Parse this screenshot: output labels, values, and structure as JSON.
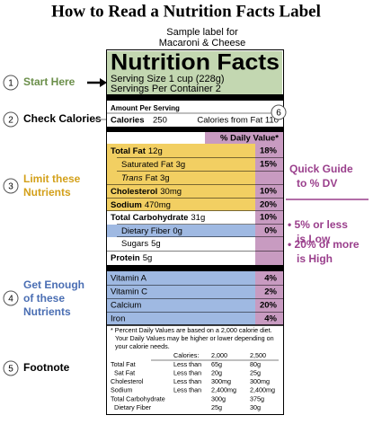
{
  "title": "How to Read a Nutrition Facts Label",
  "subtitle": [
    "Sample label for",
    "Macaroni & Cheese"
  ],
  "annotations": [
    {
      "number": "1",
      "text": [
        "Start Here"
      ]
    },
    {
      "number": "2",
      "text": [
        "Check Calories"
      ]
    },
    {
      "number": "3",
      "text": [
        "Limit these",
        "Nutrients"
      ]
    },
    {
      "number": "4",
      "text": [
        "Get Enough",
        "of these",
        "Nutrients"
      ]
    },
    {
      "number": "5",
      "text": [
        "Footnote"
      ]
    }
  ],
  "guide": {
    "number": "6",
    "heading": [
      "Quick Guide",
      "to % DV"
    ],
    "bullets": [
      [
        "• 5% or less",
        "is Low"
      ],
      [
        "• 20% or more",
        "is High"
      ]
    ]
  },
  "label": {
    "heading": "Nutrition Facts",
    "serving_size": "Serving Size 1 cup (228g)",
    "servings": "Servings Per Container  2",
    "amount_per_serving": "Amount Per Serving",
    "calories_label": "Calories",
    "calories": "250",
    "calories_from_fat": "Calories from Fat 110",
    "dv_header": "% Daily Value*",
    "nutrients": [
      {
        "name": "Total Fat",
        "amount": "12g",
        "dv": "18%"
      },
      {
        "name": "Saturated Fat",
        "amount": "3g",
        "dv": "15%"
      },
      {
        "name": "Trans",
        "amount": "Fat 3g"
      },
      {
        "name": "Cholesterol",
        "amount": "30mg",
        "dv": "10%"
      },
      {
        "name": "Sodium",
        "amount": "470mg",
        "dv": "20%"
      },
      {
        "name": "Total Carbohydrate",
        "amount": "31g",
        "dv": "10%"
      },
      {
        "name": "Dietary Fiber",
        "amount": "0g",
        "dv": "0%"
      },
      {
        "name": "Sugars",
        "amount": "5g"
      },
      {
        "name": "Protein",
        "amount": "5g"
      }
    ],
    "vitamins": [
      {
        "name": "Vitamin A",
        "dv": "4%"
      },
      {
        "name": "Vitamin C",
        "dv": "2%"
      },
      {
        "name": "Calcium",
        "dv": "20%"
      },
      {
        "name": "Iron",
        "dv": "4%"
      }
    ],
    "footnote": [
      "* Percent Daily Values are based on a 2,000 calorie diet.",
      "Your Daily Values may be higher or lower depending on",
      "your calorie needs."
    ],
    "table": {
      "header": [
        "Calories:",
        "2,000",
        "2,500"
      ],
      "rows": [
        [
          "Total Fat",
          "Less than",
          "65g",
          "80g"
        ],
        [
          "Sat Fat",
          "Less than",
          "20g",
          "25g"
        ],
        [
          "Cholesterol",
          "Less than",
          "300mg",
          "300mg"
        ],
        [
          "Sodium",
          "Less than",
          "2,400mg",
          "2,400mg"
        ],
        [
          "Total Carbohydrate",
          "300g",
          "375g"
        ],
        [
          "Dietary Fiber",
          "25g",
          "30g"
        ]
      ]
    }
  }
}
